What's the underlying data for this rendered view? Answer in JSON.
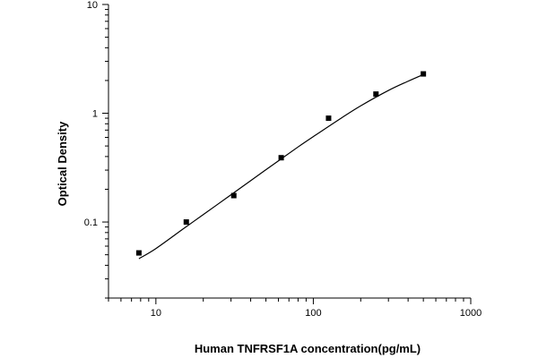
{
  "chart_data": {
    "type": "scatter",
    "title": "",
    "xlabel": "Human TNFRSF1A concentration(pg/mL)",
    "ylabel": "Optical Density",
    "x_scale": "log",
    "y_scale": "log",
    "xlim": [
      5,
      1000
    ],
    "ylim": [
      0.02,
      10
    ],
    "x_ticks": [
      10,
      100,
      1000
    ],
    "x_tick_labels": [
      "10",
      "100",
      "1000"
    ],
    "y_ticks": [
      0.1,
      1,
      10
    ],
    "y_tick_labels": [
      "0.1",
      "1",
      "10"
    ],
    "grid": false,
    "legend": "none",
    "series": [
      {
        "type": "scatter",
        "marker": "square",
        "color": "#000000",
        "x": [
          7.8,
          15.6,
          31.25,
          62.5,
          125,
          250,
          500
        ],
        "y": [
          0.052,
          0.1,
          0.175,
          0.39,
          0.9,
          1.5,
          2.3
        ]
      },
      {
        "type": "line",
        "color": "#000000",
        "x": [
          7.8,
          10,
          15,
          20,
          30,
          40,
          60,
          80,
          100,
          150,
          200,
          300,
          400,
          500
        ],
        "y": [
          0.046,
          0.057,
          0.087,
          0.117,
          0.178,
          0.24,
          0.365,
          0.49,
          0.61,
          0.9,
          1.17,
          1.62,
          1.97,
          2.27
        ]
      }
    ]
  }
}
